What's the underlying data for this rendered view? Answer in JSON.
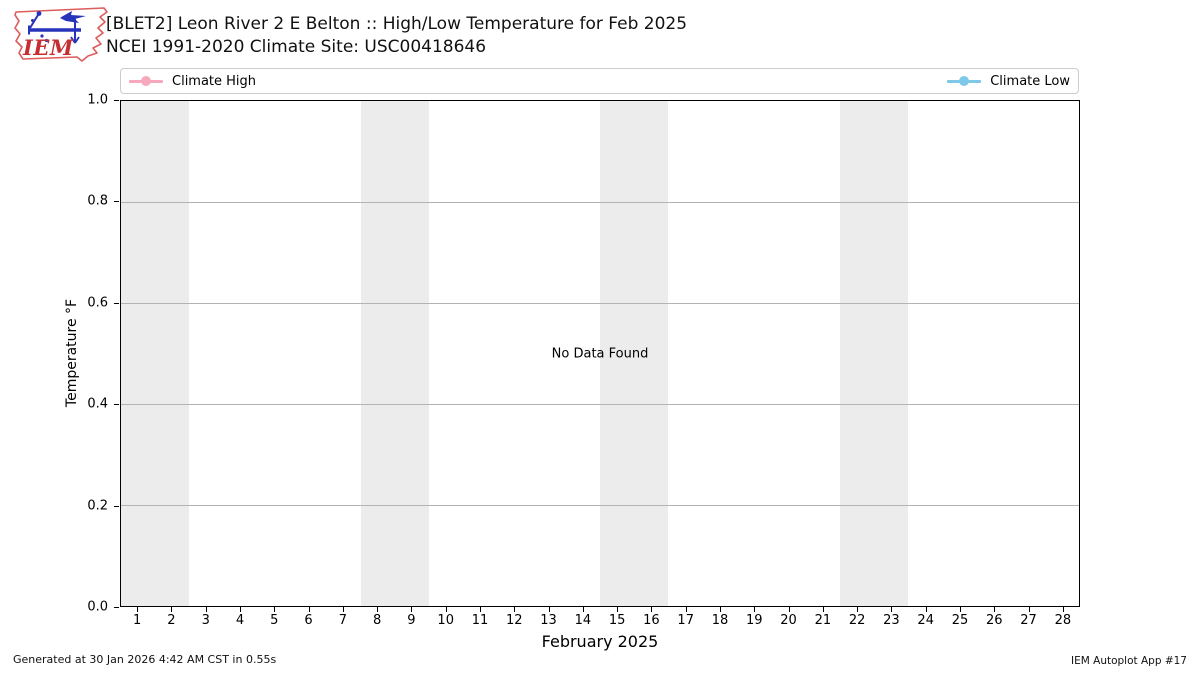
{
  "header": {
    "title_line1": "[BLET2] Leon River 2 E Belton :: High/Low Temperature for Feb 2025",
    "title_line2": "NCEI 1991-2020 Climate Site: USC00418646"
  },
  "logo": {
    "text": "IEM",
    "outline_color": "#dd5c5c",
    "text_color": "#c42f33",
    "drawing_color": "#2733bb"
  },
  "legend": {
    "items": [
      {
        "label": "Climate High",
        "color": "#f7a8bc"
      },
      {
        "label": "Climate Low",
        "color": "#7ec9e8"
      }
    ]
  },
  "chart_data": {
    "type": "line",
    "title": "[BLET2] Leon River 2 E Belton :: High/Low Temperature for Feb 2025 — NCEI 1991-2020 Climate Site: USC00418646",
    "xlabel": "February 2025",
    "ylabel": "Temperature °F",
    "xlim": [
      0.5,
      28.5
    ],
    "ylim": [
      0.0,
      1.0
    ],
    "x_ticks": [
      1,
      2,
      3,
      4,
      5,
      6,
      7,
      8,
      9,
      10,
      11,
      12,
      13,
      14,
      15,
      16,
      17,
      18,
      19,
      20,
      21,
      22,
      23,
      24,
      25,
      26,
      27,
      28
    ],
    "y_ticks": [
      "0.0",
      "0.2",
      "0.4",
      "0.6",
      "0.8",
      "1.0"
    ],
    "series": [
      {
        "name": "Climate High",
        "color": "#f7a8bc",
        "x": [],
        "values": []
      },
      {
        "name": "Climate Low",
        "color": "#7ec9e8",
        "x": [],
        "values": []
      }
    ],
    "no_data_text": "No Data Found",
    "weekend_bands": [
      [
        0.5,
        2.5
      ],
      [
        7.5,
        9.5
      ],
      [
        14.5,
        16.5
      ],
      [
        21.5,
        23.5
      ]
    ],
    "band_color": "#ececec",
    "grid": {
      "y_values": [
        0.2,
        0.4,
        0.6,
        0.8
      ],
      "color": "#b3b3b3",
      "vertical": false
    },
    "legend_position": "top, expanded full width, 2 columns"
  },
  "footer": {
    "left": "Generated at 30 Jan 2026 4:42 AM CST in 0.55s",
    "right": "IEM Autoplot App #17"
  }
}
